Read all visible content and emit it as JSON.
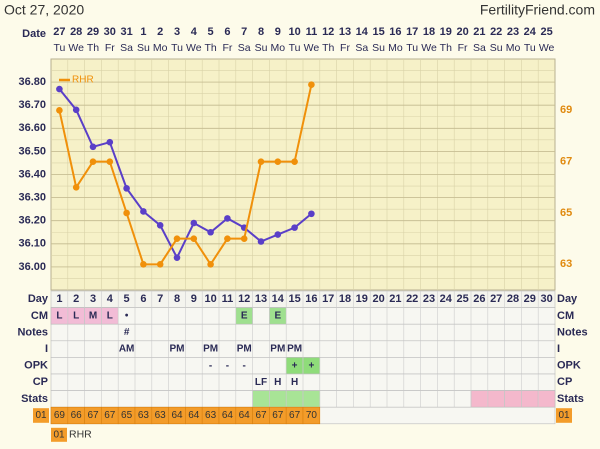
{
  "header": {
    "date": "Oct 27, 2020",
    "site": "FertilityFriend.com",
    "date_label": "Date"
  },
  "dates": [
    27,
    28,
    29,
    30,
    31,
    1,
    2,
    3,
    4,
    5,
    6,
    7,
    8,
    9,
    10,
    11,
    12,
    13,
    14,
    15,
    16,
    17,
    18,
    19,
    20,
    21,
    22,
    23,
    24,
    25
  ],
  "weekdays": [
    "Tu",
    "We",
    "Th",
    "Fr",
    "Sa",
    "Su",
    "Mo",
    "Tu",
    "We",
    "Th",
    "Fr",
    "Sa",
    "Su",
    "Mo",
    "Tu",
    "We",
    "Th",
    "Fr",
    "Sa",
    "Su",
    "Mo",
    "Tu",
    "We",
    "Th",
    "Fr",
    "Sa",
    "Su",
    "Mo",
    "Tu",
    "We"
  ],
  "chart_data": {
    "type": "line",
    "x": [
      1,
      2,
      3,
      4,
      5,
      6,
      7,
      8,
      9,
      10,
      11,
      12,
      13,
      14,
      15,
      16
    ],
    "ylim": [
      35.9,
      36.9
    ],
    "yticks": [
      {
        "value": 36.0,
        "label": "36.00"
      },
      {
        "value": 36.1,
        "label": "36.10"
      },
      {
        "value": 36.2,
        "label": "36.20"
      },
      {
        "value": 36.3,
        "label": "36.30"
      },
      {
        "value": 36.4,
        "label": "36.40"
      },
      {
        "value": 36.5,
        "label": "36.50"
      },
      {
        "value": 36.6,
        "label": "36.60"
      },
      {
        "value": 36.7,
        "label": "36.70"
      },
      {
        "value": 36.8,
        "label": "36.80"
      }
    ],
    "y2lim": [
      62,
      71
    ],
    "y2ticks": [
      63,
      65,
      67,
      69
    ],
    "grid": true,
    "legend": "upper left",
    "series": [
      {
        "color": "#5a3fc8",
        "values": [
          36.77,
          36.68,
          36.52,
          36.54,
          36.34,
          36.24,
          36.18,
          36.04,
          36.19,
          36.15,
          36.21,
          36.17,
          36.11,
          36.14,
          36.17,
          36.23
        ]
      },
      {
        "name": "RHR",
        "color": "#f0900a",
        "axis": "y2",
        "values": [
          69,
          66,
          67,
          67,
          65,
          63,
          63,
          64,
          64,
          63,
          64,
          64,
          67,
          67,
          67,
          70
        ]
      }
    ]
  },
  "days_label": "Day",
  "days": [
    1,
    2,
    3,
    4,
    5,
    6,
    7,
    8,
    9,
    10,
    11,
    12,
    13,
    14,
    15,
    16,
    17,
    18,
    19,
    20,
    21,
    22,
    23,
    24,
    25,
    26,
    27,
    28,
    29,
    30
  ],
  "rows": [
    {
      "label": "CM",
      "cells": [
        {
          "day": 1,
          "text": "L",
          "color": "#f2bcd6"
        },
        {
          "day": 2,
          "text": "L",
          "color": "#f2bcd6"
        },
        {
          "day": 3,
          "text": "M",
          "color": "#f2bcd6"
        },
        {
          "day": 4,
          "text": "L",
          "color": "#f2bcd6"
        },
        {
          "day": 5,
          "text": "•"
        },
        {
          "day": 12,
          "text": "E",
          "color": "#9fe08f"
        },
        {
          "day": 14,
          "text": "E",
          "color": "#9fe08f"
        }
      ]
    },
    {
      "label": "Notes",
      "cells": [
        {
          "day": 5,
          "text": "#"
        }
      ]
    },
    {
      "label": "I",
      "cells": [
        {
          "day": 5,
          "text": "AM"
        },
        {
          "day": 8,
          "text": "PM"
        },
        {
          "day": 10,
          "text": "PM"
        },
        {
          "day": 12,
          "text": "PM"
        },
        {
          "day": 14,
          "text": "PM"
        },
        {
          "day": 15,
          "text": "PM"
        }
      ]
    },
    {
      "label": "OPK",
      "cells": [
        {
          "day": 10,
          "text": "-"
        },
        {
          "day": 11,
          "text": "-"
        },
        {
          "day": 12,
          "text": "-"
        },
        {
          "day": 15,
          "text": "+",
          "color": "#8fdc7a"
        },
        {
          "day": 16,
          "text": "+",
          "color": "#8fdc7a"
        }
      ]
    },
    {
      "label": "CP",
      "cells": [
        {
          "day": 13,
          "text": "LF"
        },
        {
          "day": 14,
          "text": "H"
        },
        {
          "day": 15,
          "text": "H"
        }
      ]
    },
    {
      "label": "Stats",
      "cells": [
        {
          "day": 13,
          "color": "#a8e496"
        },
        {
          "day": 14,
          "color": "#a8e496"
        },
        {
          "day": 15,
          "color": "#a8e496"
        },
        {
          "day": 16,
          "color": "#a8e496"
        },
        {
          "day": 26,
          "color": "#f4b8cc"
        },
        {
          "day": 27,
          "color": "#f4b8cc"
        },
        {
          "day": 28,
          "color": "#f4b8cc"
        },
        {
          "day": 29,
          "color": "#f4b8cc"
        },
        {
          "day": 30,
          "color": "#f4b8cc"
        }
      ]
    }
  ],
  "rhr_row": {
    "label": "01",
    "color": "#f39c2a"
  },
  "legend": {
    "code": "01"
  }
}
